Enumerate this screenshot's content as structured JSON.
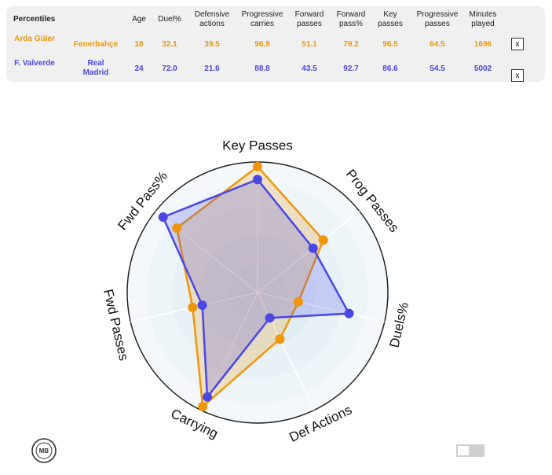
{
  "table": {
    "columns": [
      "Percentiles",
      "Age",
      "Duel%",
      "Defensive actions",
      "Progressive carries",
      "Forward passes",
      "Forward pass%",
      "Key passes",
      "Progressive passes",
      "Minutes played"
    ],
    "rows": [
      {
        "player": "Arda Güler",
        "team": "Fenerbahçe",
        "values": [
          "18",
          "32.1",
          "39.5",
          "96.9",
          "51.1",
          "79.2",
          "96.5",
          "64.5",
          "1696"
        ],
        "color": "#f0960a",
        "remove_label": "x"
      },
      {
        "player": "F. Valverde",
        "team": "Real Madrid",
        "values": [
          "24",
          "72.0",
          "21.6",
          "88.8",
          "43.5",
          "92.7",
          "86.6",
          "54.5",
          "5002"
        ],
        "color": "#4a47e6",
        "remove_label": "x"
      }
    ]
  },
  "chart_data": {
    "type": "radar",
    "axes": [
      "Key Passes",
      "Prog Passes",
      "Duels%",
      "Def Actions",
      "Carrying",
      "Fwd Passes",
      "Fwd Pass%"
    ],
    "range": [
      0,
      100
    ],
    "series": [
      {
        "name": "Arda Güler",
        "color": "#f0960a",
        "values": [
          96.5,
          64.5,
          32.1,
          39.5,
          96.9,
          51.1,
          79.2
        ]
      },
      {
        "name": "F. Valverde",
        "color": "#4a47e6",
        "values": [
          86.6,
          54.5,
          72.0,
          21.6,
          88.8,
          43.5,
          92.7
        ]
      }
    ]
  },
  "logo": {
    "text": "MB"
  }
}
